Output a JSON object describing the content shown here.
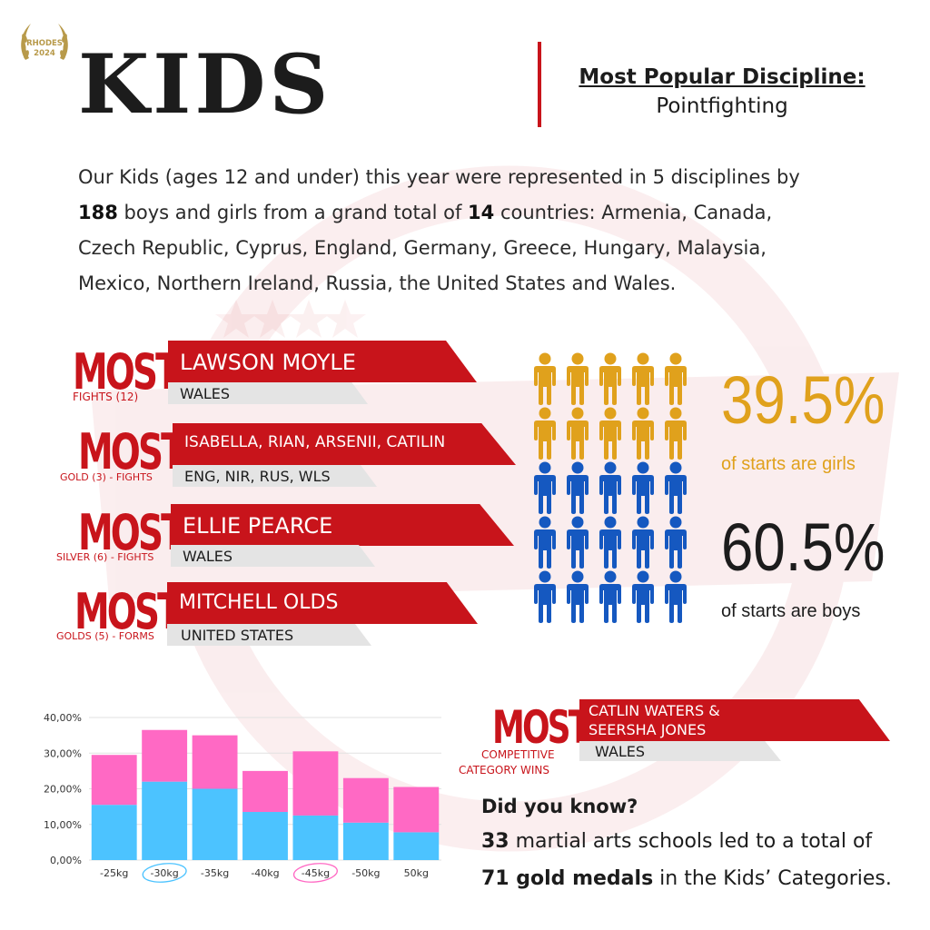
{
  "logo": {
    "line1": "RHODES",
    "line2": "2024"
  },
  "title": "KIDS",
  "popular": {
    "label": "Most Popular Discipline:",
    "value": "Pointfighting"
  },
  "intro": {
    "p1": "Our Kids (ages 12 and under) this year were represented in 5 disciplines by",
    "boys_girls_count": "188",
    "p2": " boys and girls from a grand total of ",
    "countries_count": "14",
    "p3": " countries: Armenia, Canada,",
    "p4": "Czech Republic, Cyprus, England, Germany, Greece, Hungary, Malaysia,",
    "p5": "Mexico, Northern Ireland, Russia,  the United States and Wales."
  },
  "most": [
    {
      "word": "MOST",
      "sub": "FIGHTS (12)",
      "name": "LAWSON MOYLE",
      "country": "WALES"
    },
    {
      "word": "MOST",
      "sub": "GOLD  (3) - FIGHTS",
      "name": "ISABELLA, RIAN, ARSENII, CATILIN",
      "country": "ENG, NIR, RUS, WLS"
    },
    {
      "word": "MOST",
      "sub": "SILVER (6) - FIGHTS",
      "name": "ELLIE PEARCE",
      "country": "WALES"
    },
    {
      "word": "MOST",
      "sub": "GOLDS (5) - FORMS",
      "name": "MITCHELL OLDS",
      "country": "UNITED STATES"
    }
  ],
  "most_bottom": {
    "word": "MOST",
    "sub1": "COMPETITIVE",
    "sub2": "CATEGORY WINS",
    "name1": "CATLIN WATERS &",
    "name2": "SEERSHA JONES",
    "country": "WALES"
  },
  "gender": {
    "girls_fraction": 0.395,
    "girls_pct": "39.5%",
    "girls_caption": "of starts are girls",
    "boys_pct": "60.5%",
    "boys_caption": "of starts are boys",
    "icon": "person-icon",
    "girls_color": "#e0a11c",
    "boys_color": "#1558c0"
  },
  "colors": {
    "accent": "#c8141b",
    "chart_pink": "#ff69c4",
    "chart_blue": "#4cc3ff"
  },
  "chart_data": {
    "type": "bar",
    "stacked": true,
    "categories": [
      "-25kg",
      "-30kg",
      "-35kg",
      "-40kg",
      "-45kg",
      "-50kg",
      "50kg"
    ],
    "series": [
      {
        "values": [
          15.5,
          22.0,
          20.0,
          13.5,
          12.5,
          10.5,
          7.8
        ],
        "color": "#4cc3ff"
      },
      {
        "values": [
          14.0,
          14.5,
          15.0,
          11.5,
          18.0,
          12.5,
          12.7
        ],
        "color": "#ff69c4"
      }
    ],
    "yticks": [
      "0,00%",
      "10,00%",
      "20,00%",
      "30,00%",
      "40,00%"
    ],
    "ylim": [
      0,
      40
    ],
    "grid": true,
    "highlighted": [
      {
        "category": "-30kg",
        "color": "#4cc3ff"
      },
      {
        "category": "-45kg",
        "color": "#ff69c4"
      }
    ]
  },
  "did_you_know": {
    "title": "Did you know?",
    "schools": "33",
    "line1_rest": " martial arts schools led to a total of",
    "medals": "71 gold medals",
    "line2_rest": " in the Kids’ Categories."
  }
}
